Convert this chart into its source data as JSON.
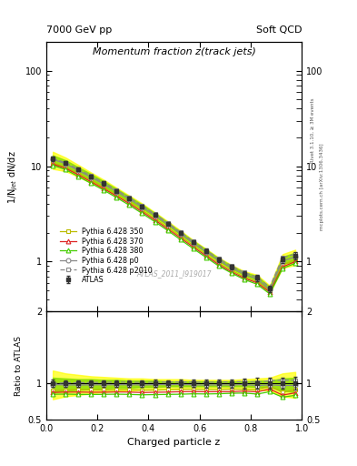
{
  "title_main": "Momentum fraction z(track jets)",
  "header_left": "7000 GeV pp",
  "header_right": "Soft QCD",
  "ylabel_main": "1/N$_{jet}$ dN/dz",
  "ylabel_ratio": "Ratio to ATLAS",
  "xlabel": "Charged particle z",
  "watermark": "ATLAS_2011_I919017",
  "right_label": "mcplots.cern.ch [arXiv:1306.3436]",
  "rivet_label": "Rivet 3.1.10, ≥ 3M events",
  "xlim": [
    0.0,
    1.0
  ],
  "ylim_main": [
    0.3,
    200
  ],
  "ylim_ratio": [
    0.5,
    2.0
  ],
  "z_values": [
    0.025,
    0.075,
    0.125,
    0.175,
    0.225,
    0.275,
    0.325,
    0.375,
    0.425,
    0.475,
    0.525,
    0.575,
    0.625,
    0.675,
    0.725,
    0.775,
    0.825,
    0.875,
    0.925,
    0.975
  ],
  "atlas_y": [
    12.0,
    10.8,
    9.2,
    7.8,
    6.6,
    5.5,
    4.6,
    3.8,
    3.1,
    2.5,
    2.0,
    1.6,
    1.3,
    1.05,
    0.88,
    0.75,
    0.68,
    0.52,
    1.05,
    1.15
  ],
  "atlas_yerr": [
    0.6,
    0.5,
    0.4,
    0.35,
    0.3,
    0.25,
    0.22,
    0.18,
    0.15,
    0.12,
    0.1,
    0.08,
    0.07,
    0.06,
    0.05,
    0.05,
    0.05,
    0.04,
    0.08,
    0.1
  ],
  "py350_y": [
    10.8,
    9.8,
    8.4,
    7.1,
    6.0,
    5.0,
    4.2,
    3.45,
    2.82,
    2.28,
    1.84,
    1.47,
    1.19,
    0.96,
    0.81,
    0.69,
    0.62,
    0.5,
    0.92,
    1.05
  ],
  "py370_y": [
    10.5,
    9.5,
    8.1,
    6.85,
    5.8,
    4.85,
    4.05,
    3.32,
    2.72,
    2.2,
    1.77,
    1.42,
    1.15,
    0.93,
    0.78,
    0.67,
    0.6,
    0.48,
    0.88,
    1.0
  ],
  "py380_y": [
    10.2,
    9.2,
    7.8,
    6.6,
    5.6,
    4.68,
    3.9,
    3.2,
    2.62,
    2.12,
    1.7,
    1.37,
    1.11,
    0.9,
    0.76,
    0.65,
    0.58,
    0.46,
    0.85,
    0.96
  ],
  "pyp0_y": [
    11.8,
    10.6,
    9.0,
    7.65,
    6.48,
    5.4,
    4.52,
    3.72,
    3.05,
    2.46,
    1.97,
    1.57,
    1.27,
    1.03,
    0.86,
    0.74,
    0.66,
    0.51,
    1.02,
    1.12
  ],
  "pyp2010_y": [
    12.0,
    10.9,
    9.3,
    7.9,
    6.7,
    5.6,
    4.68,
    3.85,
    3.15,
    2.55,
    2.04,
    1.63,
    1.32,
    1.07,
    0.9,
    0.77,
    0.69,
    0.54,
    1.1,
    1.2
  ],
  "colors": {
    "atlas": "#333333",
    "py350": "#bbbb00",
    "py370": "#dd2222",
    "py380": "#44cc00",
    "pyp0": "#888888",
    "pyp2010": "#888888"
  },
  "band_yellow_lo": [
    0.78,
    0.82,
    0.84,
    0.86,
    0.88,
    0.89,
    0.9,
    0.91,
    0.91,
    0.92,
    0.92,
    0.93,
    0.93,
    0.93,
    0.93,
    0.92,
    0.91,
    0.9,
    0.82,
    0.8
  ],
  "band_yellow_hi": [
    1.18,
    1.14,
    1.12,
    1.1,
    1.09,
    1.08,
    1.07,
    1.07,
    1.06,
    1.06,
    1.06,
    1.05,
    1.05,
    1.05,
    1.05,
    1.06,
    1.07,
    1.08,
    1.14,
    1.16
  ],
  "band_green_lo": [
    0.88,
    0.9,
    0.91,
    0.92,
    0.93,
    0.94,
    0.94,
    0.95,
    0.95,
    0.96,
    0.96,
    0.96,
    0.96,
    0.96,
    0.96,
    0.96,
    0.95,
    0.95,
    0.9,
    0.88
  ],
  "band_green_hi": [
    1.08,
    1.07,
    1.06,
    1.06,
    1.05,
    1.05,
    1.04,
    1.04,
    1.04,
    1.03,
    1.03,
    1.03,
    1.03,
    1.03,
    1.03,
    1.03,
    1.04,
    1.04,
    1.07,
    1.08
  ]
}
